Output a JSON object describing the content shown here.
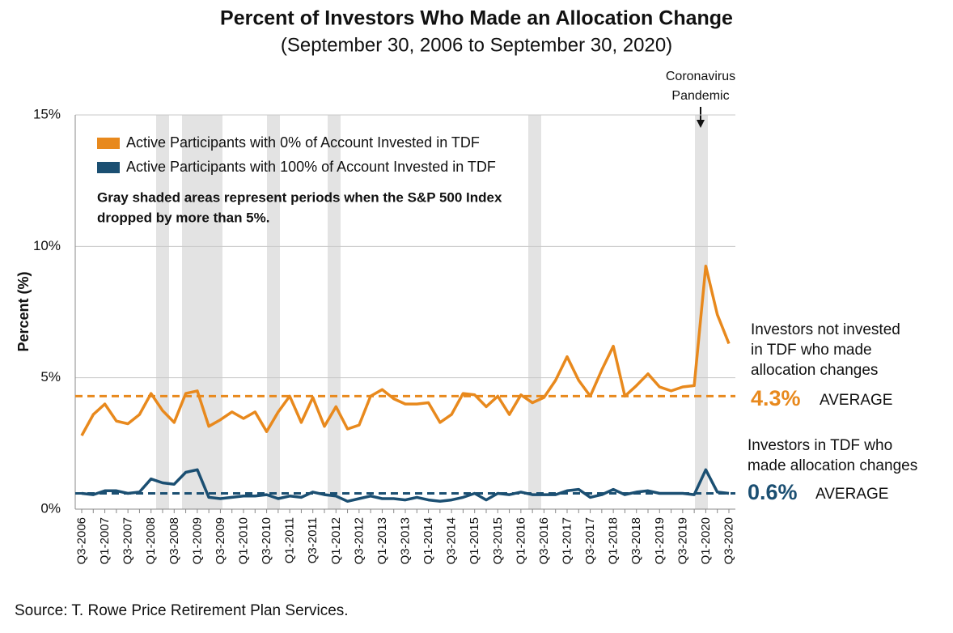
{
  "chart_data": {
    "type": "line",
    "title": "Percent of Investors Who Made an Allocation Change",
    "subtitle": "(September 30, 2006 to September 30, 2020)",
    "y_label": "Percent (%)",
    "source": "Source: T. Rowe Price Retirement Plan Services.",
    "note": [
      "Gray shaded areas represent periods when the S&P 500 Index",
      "dropped by more than 5%."
    ],
    "event_label": [
      "Coronavirus",
      "Pandemic"
    ],
    "ylim": [
      0,
      15
    ],
    "yticks": [
      {
        "value": 0,
        "label": "0%"
      },
      {
        "value": 5,
        "label": "5%"
      },
      {
        "value": 10,
        "label": "10%"
      },
      {
        "value": 15,
        "label": "15%"
      }
    ],
    "grid": true,
    "categories": [
      "Q3-2006",
      null,
      "Q1-2007",
      null,
      "Q3-2007",
      null,
      "Q1-2008",
      null,
      "Q3-2008",
      null,
      "Q1-2009",
      null,
      "Q3-2009",
      null,
      "Q1-2010",
      null,
      "Q3-2010",
      null,
      "Q1-2011",
      null,
      "Q3-2011",
      null,
      "Q1-2012",
      null,
      "Q3-2012",
      null,
      "Q1-2013",
      null,
      "Q3-2013",
      null,
      "Q1-2014",
      null,
      "Q3-2014",
      null,
      "Q1-2015",
      null,
      "Q3-2015",
      null,
      "Q1-2016",
      null,
      "Q3-2016",
      null,
      "Q1-2017",
      null,
      "Q3-2017",
      null,
      "Q1-2018",
      null,
      "Q3-2018",
      null,
      "Q1-2019",
      null,
      "Q3-2019",
      null,
      "Q1-2020",
      null,
      "Q3-2020"
    ],
    "series": [
      {
        "name": "Active Participants with 0% of Account Invested in TDF",
        "color": "#e8891d",
        "values": [
          2.8,
          3.6,
          4.0,
          3.35,
          3.25,
          3.6,
          4.4,
          3.75,
          3.3,
          4.4,
          4.5,
          3.15,
          3.4,
          3.7,
          3.45,
          3.7,
          2.95,
          3.7,
          4.3,
          3.3,
          4.25,
          3.15,
          3.9,
          3.05,
          3.2,
          4.3,
          4.55,
          4.2,
          4.0,
          4.0,
          4.05,
          3.3,
          3.6,
          4.4,
          4.35,
          3.9,
          4.3,
          3.6,
          4.35,
          4.05,
          4.25,
          4.9,
          5.8,
          4.9,
          4.3,
          5.3,
          6.2,
          4.3,
          4.7,
          5.15,
          4.65,
          4.5,
          4.65,
          4.7,
          9.25,
          7.4,
          6.3
        ]
      },
      {
        "name": "Active Participants with 100% of Account Invested in TDF",
        "color": "#1b4f72",
        "values": [
          0.6,
          0.55,
          0.7,
          0.7,
          0.6,
          0.65,
          1.15,
          1.0,
          0.95,
          1.4,
          1.5,
          0.45,
          0.4,
          0.45,
          0.5,
          0.5,
          0.55,
          0.4,
          0.5,
          0.45,
          0.65,
          0.55,
          0.5,
          0.3,
          0.4,
          0.5,
          0.4,
          0.4,
          0.35,
          0.45,
          0.35,
          0.3,
          0.35,
          0.45,
          0.6,
          0.35,
          0.6,
          0.55,
          0.65,
          0.55,
          0.55,
          0.55,
          0.7,
          0.75,
          0.45,
          0.55,
          0.75,
          0.55,
          0.65,
          0.7,
          0.6,
          0.6,
          0.6,
          0.55,
          1.5,
          0.65,
          0.6
        ]
      }
    ],
    "reference_lines": [
      {
        "value": 4.3,
        "label": "4.3%",
        "text": "AVERAGE",
        "color": "#e8891d",
        "annotation": [
          "Investors not invested",
          "in TDF who made",
          "allocation changes"
        ]
      },
      {
        "value": 0.6,
        "label": "0.6%",
        "text": "AVERAGE",
        "color": "#1b4f72",
        "annotation": [
          "Investors in TDF who",
          "made allocation changes"
        ]
      }
    ]
  }
}
